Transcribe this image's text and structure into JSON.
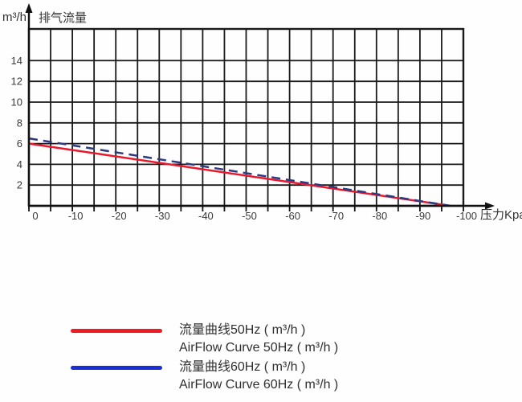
{
  "colors": {
    "background": "#fefefe",
    "grid": "#1a1a1a",
    "axis": "#111111",
    "tick_text": "#3a3a3a",
    "red_line": "#e8192c",
    "blue_dash_line": "#2e3a80",
    "legend_red": "#ed1c24",
    "legend_blue": "#1c2fd6"
  },
  "axes_titles": {
    "y_unit": "m³/h",
    "y_title": "排气流量",
    "x_title": "压力Kpa"
  },
  "chart_data": {
    "type": "line",
    "xlabel": "压力Kpa",
    "ylabel": "排气流量 m³/h",
    "xlim": [
      0,
      -100
    ],
    "ylim": [
      0,
      17
    ],
    "x_ticks": [
      0,
      -10,
      -20,
      -30,
      -40,
      -50,
      -60,
      -70,
      -80,
      -90,
      -100
    ],
    "x_minor_tick_step": 5,
    "y_ticks": [
      2,
      4,
      6,
      8,
      10,
      12,
      14
    ],
    "grid": true,
    "legend_position": "bottom-left",
    "series": [
      {
        "name_zh": "流量曲线50Hz ( m³/h )",
        "name_en": "AirFlow Curve 50Hz ( m³/h )",
        "color": "#e8192c",
        "legend_color": "#ed1c24",
        "line_style": "solid",
        "points": [
          [
            0,
            6.0
          ],
          [
            -97,
            0
          ]
        ]
      },
      {
        "name_zh": "流量曲线60Hz ( m³/h )",
        "name_en": "AirFlow Curve 60Hz ( m³/h )",
        "color": "#2e3a80",
        "legend_color": "#1c2fd6",
        "line_style": "dashed",
        "points": [
          [
            0,
            6.5
          ],
          [
            -97,
            0
          ]
        ]
      }
    ]
  }
}
